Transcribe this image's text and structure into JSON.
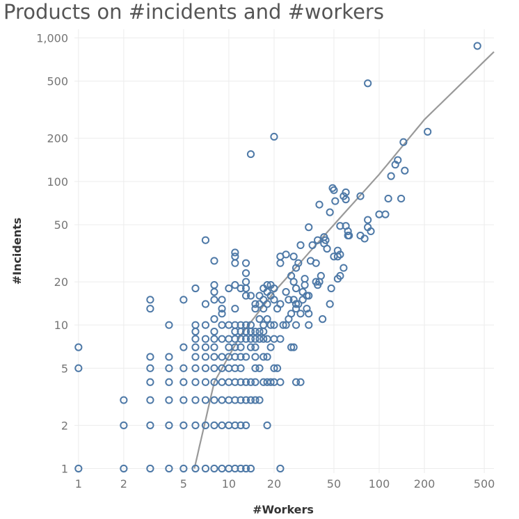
{
  "chart_data": {
    "type": "scatter",
    "title": "Products on #incidents and #workers",
    "xlabel": "#Workers",
    "ylabel": "#Incidents",
    "x_scale": "log",
    "y_scale": "log",
    "xlim": [
      0.94,
      580
    ],
    "ylim": [
      0.93,
      1150
    ],
    "x_ticks": [
      1,
      2,
      5,
      10,
      20,
      50,
      100,
      200,
      500
    ],
    "x_tick_labels": [
      "1",
      "2",
      "5",
      "10",
      "20",
      "50",
      "100",
      "200",
      "500"
    ],
    "y_ticks": [
      1,
      2,
      5,
      10,
      20,
      50,
      100,
      200,
      500,
      1000
    ],
    "y_tick_labels": [
      "1",
      "2",
      "5",
      "10",
      "20",
      "50",
      "100",
      "200",
      "500",
      "1,000"
    ],
    "grid": true,
    "colors": {
      "marker": "#4e79a7",
      "trend": "#999999"
    },
    "trend_line": {
      "type": "power",
      "points": [
        [
          5.9,
          1
        ],
        [
          8,
          4
        ],
        [
          12,
          8.5
        ],
        [
          20,
          17
        ],
        [
          50,
          50
        ],
        [
          100,
          112
        ],
        [
          200,
          270
        ],
        [
          580,
          800
        ]
      ]
    },
    "points": [
      [
        1,
        1
      ],
      [
        1,
        5
      ],
      [
        1,
        7
      ],
      [
        2,
        1
      ],
      [
        2,
        2
      ],
      [
        2,
        3
      ],
      [
        3,
        1
      ],
      [
        3,
        2
      ],
      [
        3,
        3
      ],
      [
        3,
        4
      ],
      [
        3,
        5
      ],
      [
        3,
        6
      ],
      [
        3,
        13
      ],
      [
        3,
        15
      ],
      [
        4,
        1
      ],
      [
        4,
        2
      ],
      [
        4,
        3
      ],
      [
        4,
        4
      ],
      [
        4,
        5
      ],
      [
        4,
        6
      ],
      [
        4,
        10
      ],
      [
        5,
        1
      ],
      [
        5,
        2
      ],
      [
        5,
        3
      ],
      [
        5,
        4
      ],
      [
        5,
        5
      ],
      [
        5,
        7
      ],
      [
        5,
        15
      ],
      [
        6,
        1
      ],
      [
        6,
        2
      ],
      [
        6,
        3
      ],
      [
        6,
        4
      ],
      [
        6,
        5
      ],
      [
        6,
        6
      ],
      [
        6,
        7
      ],
      [
        6,
        8
      ],
      [
        6,
        9
      ],
      [
        6,
        10
      ],
      [
        6,
        18
      ],
      [
        7,
        1
      ],
      [
        7,
        2
      ],
      [
        7,
        3
      ],
      [
        7,
        4
      ],
      [
        7,
        5
      ],
      [
        7,
        6
      ],
      [
        7,
        7
      ],
      [
        7,
        8
      ],
      [
        7,
        10
      ],
      [
        7,
        14
      ],
      [
        7,
        39
      ],
      [
        8,
        1
      ],
      [
        8,
        2
      ],
      [
        8,
        3
      ],
      [
        8,
        4
      ],
      [
        8,
        5
      ],
      [
        8,
        6
      ],
      [
        8,
        7
      ],
      [
        8,
        8
      ],
      [
        8,
        9
      ],
      [
        8,
        11
      ],
      [
        8,
        15
      ],
      [
        8,
        17
      ],
      [
        8,
        19
      ],
      [
        8,
        28
      ],
      [
        9,
        1
      ],
      [
        9,
        2
      ],
      [
        9,
        3
      ],
      [
        9,
        4
      ],
      [
        9,
        5
      ],
      [
        9,
        6
      ],
      [
        9,
        8
      ],
      [
        9,
        10
      ],
      [
        9,
        12
      ],
      [
        9,
        13
      ],
      [
        9,
        15
      ],
      [
        10,
        1
      ],
      [
        10,
        2
      ],
      [
        10,
        3
      ],
      [
        10,
        4
      ],
      [
        10,
        5
      ],
      [
        10,
        6
      ],
      [
        10,
        7
      ],
      [
        10,
        8
      ],
      [
        10,
        10
      ],
      [
        10,
        18
      ],
      [
        11,
        1
      ],
      [
        11,
        2
      ],
      [
        11,
        3
      ],
      [
        11,
        4
      ],
      [
        11,
        5
      ],
      [
        11,
        6
      ],
      [
        11,
        7
      ],
      [
        11,
        8
      ],
      [
        11,
        9
      ],
      [
        11,
        10
      ],
      [
        11,
        13
      ],
      [
        11,
        19
      ],
      [
        11,
        27
      ],
      [
        11,
        30
      ],
      [
        11,
        32
      ],
      [
        12,
        1
      ],
      [
        12,
        2
      ],
      [
        12,
        3
      ],
      [
        12,
        4
      ],
      [
        12,
        5
      ],
      [
        12,
        6
      ],
      [
        12,
        7
      ],
      [
        12,
        8
      ],
      [
        12,
        9
      ],
      [
        12,
        10
      ],
      [
        12,
        18
      ],
      [
        13,
        1
      ],
      [
        13,
        2
      ],
      [
        13,
        3
      ],
      [
        13,
        4
      ],
      [
        13,
        6
      ],
      [
        13,
        8
      ],
      [
        13,
        9
      ],
      [
        13,
        10
      ],
      [
        13,
        16
      ],
      [
        13,
        18
      ],
      [
        13,
        20
      ],
      [
        13,
        23
      ],
      [
        13,
        27
      ],
      [
        14,
        1
      ],
      [
        14,
        3
      ],
      [
        14,
        4
      ],
      [
        14,
        7
      ],
      [
        14,
        8
      ],
      [
        14,
        9
      ],
      [
        14,
        10
      ],
      [
        14,
        16
      ],
      [
        14,
        155
      ],
      [
        15,
        3
      ],
      [
        15,
        4
      ],
      [
        15,
        5
      ],
      [
        15,
        6
      ],
      [
        15,
        7
      ],
      [
        15,
        8
      ],
      [
        15,
        9
      ],
      [
        15,
        13
      ],
      [
        15,
        14
      ],
      [
        16,
        3
      ],
      [
        16,
        5
      ],
      [
        16,
        8
      ],
      [
        16,
        9
      ],
      [
        16,
        11
      ],
      [
        16,
        14
      ],
      [
        16,
        16
      ],
      [
        17,
        4
      ],
      [
        17,
        6
      ],
      [
        17,
        8
      ],
      [
        17,
        9
      ],
      [
        17,
        10
      ],
      [
        17,
        13
      ],
      [
        17,
        15
      ],
      [
        17,
        18
      ],
      [
        18,
        2
      ],
      [
        18,
        4
      ],
      [
        18,
        6
      ],
      [
        18,
        8
      ],
      [
        18,
        11
      ],
      [
        18,
        14
      ],
      [
        18,
        17
      ],
      [
        18,
        19
      ],
      [
        19,
        4
      ],
      [
        19,
        7
      ],
      [
        19,
        10
      ],
      [
        19,
        16
      ],
      [
        19,
        19
      ],
      [
        20,
        4
      ],
      [
        20,
        5
      ],
      [
        20,
        8
      ],
      [
        20,
        10
      ],
      [
        20,
        15
      ],
      [
        20,
        18
      ],
      [
        20,
        205
      ],
      [
        21,
        5
      ],
      [
        21,
        13
      ],
      [
        22,
        1
      ],
      [
        22,
        4
      ],
      [
        22,
        8
      ],
      [
        22,
        14
      ],
      [
        22,
        27
      ],
      [
        22,
        30
      ],
      [
        23,
        10
      ],
      [
        24,
        10
      ],
      [
        24,
        17
      ],
      [
        24,
        31
      ],
      [
        25,
        11
      ],
      [
        25,
        15
      ],
      [
        26,
        7
      ],
      [
        26,
        12
      ],
      [
        26,
        22
      ],
      [
        27,
        7
      ],
      [
        27,
        15
      ],
      [
        27,
        20
      ],
      [
        27,
        30
      ],
      [
        28,
        4
      ],
      [
        28,
        10
      ],
      [
        28,
        13
      ],
      [
        28,
        14
      ],
      [
        28,
        18
      ],
      [
        28,
        25
      ],
      [
        29,
        14
      ],
      [
        29,
        27
      ],
      [
        30,
        4
      ],
      [
        30,
        12
      ],
      [
        30,
        36
      ],
      [
        31,
        15
      ],
      [
        31,
        17
      ],
      [
        32,
        19
      ],
      [
        32,
        21
      ],
      [
        33,
        13
      ],
      [
        33,
        16
      ],
      [
        34,
        10
      ],
      [
        34,
        12
      ],
      [
        34,
        16
      ],
      [
        34,
        48
      ],
      [
        35,
        28
      ],
      [
        36,
        36
      ],
      [
        38,
        20
      ],
      [
        38,
        27
      ],
      [
        39,
        19
      ],
      [
        39,
        39
      ],
      [
        40,
        20
      ],
      [
        40,
        69
      ],
      [
        41,
        22
      ],
      [
        42,
        11
      ],
      [
        43,
        37
      ],
      [
        43,
        41
      ],
      [
        44,
        39
      ],
      [
        45,
        34
      ],
      [
        47,
        14
      ],
      [
        47,
        61
      ],
      [
        48,
        18
      ],
      [
        49,
        90
      ],
      [
        50,
        30
      ],
      [
        50,
        87
      ],
      [
        51,
        73
      ],
      [
        53,
        21
      ],
      [
        53,
        30
      ],
      [
        53,
        33
      ],
      [
        55,
        22
      ],
      [
        55,
        31
      ],
      [
        55,
        49
      ],
      [
        58,
        79
      ],
      [
        58,
        25
      ],
      [
        60,
        75
      ],
      [
        60,
        49
      ],
      [
        60,
        84
      ],
      [
        62,
        45
      ],
      [
        62,
        42
      ],
      [
        63,
        42
      ],
      [
        75,
        42
      ],
      [
        75,
        79
      ],
      [
        80,
        40
      ],
      [
        84,
        54
      ],
      [
        84,
        48
      ],
      [
        84,
        483
      ],
      [
        88,
        45
      ],
      [
        100,
        59
      ],
      [
        110,
        59
      ],
      [
        115,
        76
      ],
      [
        120,
        109
      ],
      [
        128,
        131
      ],
      [
        133,
        141
      ],
      [
        140,
        76
      ],
      [
        145,
        188
      ],
      [
        148,
        119
      ],
      [
        210,
        222
      ],
      [
        450,
        880
      ]
    ]
  }
}
